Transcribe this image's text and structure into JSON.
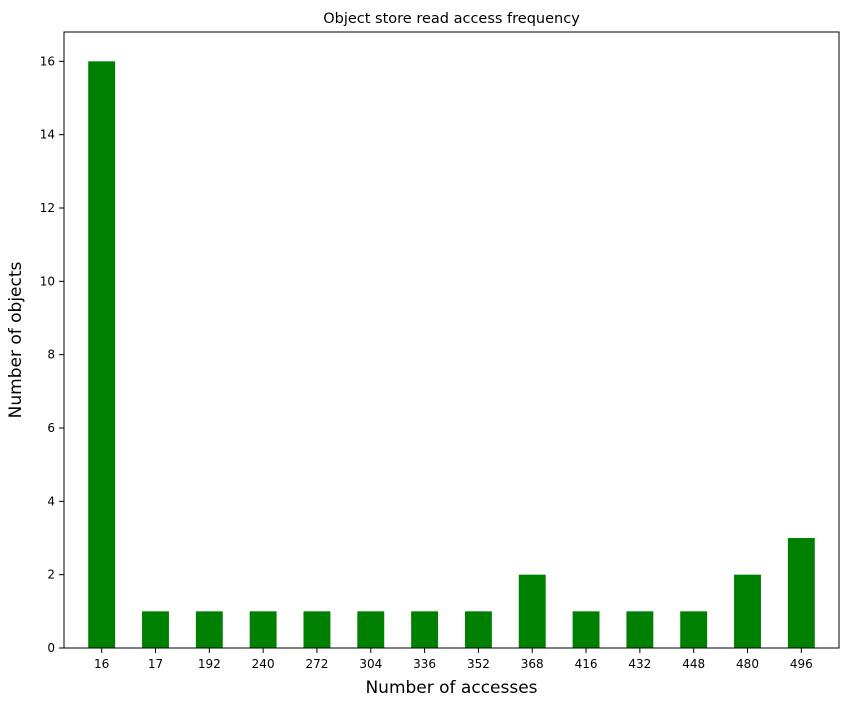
{
  "chart_data": {
    "type": "bar",
    "title": "Object store read access frequency",
    "xlabel": "Number of accesses",
    "ylabel": "Number of objects",
    "categories": [
      "16",
      "17",
      "192",
      "240",
      "272",
      "304",
      "336",
      "352",
      "368",
      "416",
      "432",
      "448",
      "480",
      "496"
    ],
    "values": [
      16,
      1,
      1,
      1,
      1,
      1,
      1,
      1,
      2,
      1,
      1,
      1,
      2,
      3
    ],
    "ylim": [
      0,
      16.8
    ],
    "yticks": [
      0,
      2,
      4,
      6,
      8,
      10,
      12,
      14,
      16
    ],
    "grid": false,
    "bar_color": "#008000"
  }
}
